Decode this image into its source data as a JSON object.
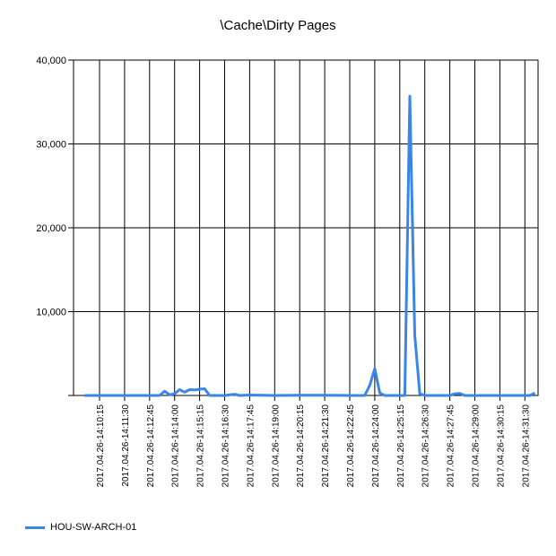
{
  "chart_data": {
    "type": "line",
    "title": "\\Cache\\Dirty Pages",
    "xlabel": "",
    "ylabel": "",
    "ylim": [
      0,
      40000
    ],
    "yticks": [
      "40,000",
      "30,000",
      "20,000",
      "10,000",
      ""
    ],
    "ytick_values": [
      40000,
      30000,
      20000,
      10000,
      0
    ],
    "grid": true,
    "legend_position": "bottom-left",
    "x_tick_labels": [
      "2017.04.26-14:10:15",
      "2017.04.26-14:11:30",
      "2017.04.26-14:12:45",
      "2017.04.26-14:14:00",
      "2017.04.26-14:15:15",
      "2017.04.26-14:16:30",
      "2017.04.26-14:17:45",
      "2017.04.26-14:19:00",
      "2017.04.26-14:20:15",
      "2017.04.26-14:21:30",
      "2017.04.26-14:22:45",
      "2017.04.26-14:24:00",
      "2017.04.26-14:25:15",
      "2017.04.26-14:26:30",
      "2017.04.26-14:27:45",
      "2017.04.26-14:29:00",
      "2017.04.26-14:30:15",
      "2017.04.26-14:31:30"
    ],
    "series": [
      {
        "name": "HOU-SW-ARCH-01",
        "color": "#3a86e8",
        "points": [
          [
            "2017.04.26-14:09:30",
            0
          ],
          [
            "2017.04.26-14:10:15",
            0
          ],
          [
            "2017.04.26-14:11:30",
            0
          ],
          [
            "2017.04.26-14:12:45",
            0
          ],
          [
            "2017.04.26-14:13:15",
            0
          ],
          [
            "2017.04.26-14:13:30",
            500
          ],
          [
            "2017.04.26-14:13:45",
            100
          ],
          [
            "2017.04.26-14:14:00",
            200
          ],
          [
            "2017.04.26-14:14:15",
            700
          ],
          [
            "2017.04.26-14:14:30",
            400
          ],
          [
            "2017.04.26-14:14:45",
            700
          ],
          [
            "2017.04.26-14:15:00",
            650
          ],
          [
            "2017.04.26-14:15:15",
            750
          ],
          [
            "2017.04.26-14:15:30",
            800
          ],
          [
            "2017.04.26-14:15:45",
            0
          ],
          [
            "2017.04.26-14:16:30",
            0
          ],
          [
            "2017.04.26-14:17:00",
            150
          ],
          [
            "2017.04.26-14:17:15",
            0
          ],
          [
            "2017.04.26-14:17:45",
            50
          ],
          [
            "2017.04.26-14:19:00",
            0
          ],
          [
            "2017.04.26-14:20:15",
            30
          ],
          [
            "2017.04.26-14:21:30",
            30
          ],
          [
            "2017.04.26-14:22:45",
            0
          ],
          [
            "2017.04.26-14:23:30",
            0
          ],
          [
            "2017.04.26-14:23:45",
            1200
          ],
          [
            "2017.04.26-14:24:00",
            3200
          ],
          [
            "2017.04.26-14:24:15",
            300
          ],
          [
            "2017.04.26-14:24:30",
            0
          ],
          [
            "2017.04.26-14:25:15",
            0
          ],
          [
            "2017.04.26-14:25:30",
            0
          ],
          [
            "2017.04.26-14:25:45",
            35700
          ],
          [
            "2017.04.26-14:26:00",
            7200
          ],
          [
            "2017.04.26-14:26:15",
            200
          ],
          [
            "2017.04.26-14:26:30",
            0
          ],
          [
            "2017.04.26-14:27:45",
            0
          ],
          [
            "2017.04.26-14:28:00",
            200
          ],
          [
            "2017.04.26-14:28:15",
            250
          ],
          [
            "2017.04.26-14:28:30",
            0
          ],
          [
            "2017.04.26-14:29:00",
            0
          ],
          [
            "2017.04.26-14:30:15",
            0
          ],
          [
            "2017.04.26-14:31:30",
            0
          ],
          [
            "2017.04.26-14:31:45",
            0
          ],
          [
            "2017.04.26-14:32:00",
            300
          ]
        ]
      }
    ]
  }
}
